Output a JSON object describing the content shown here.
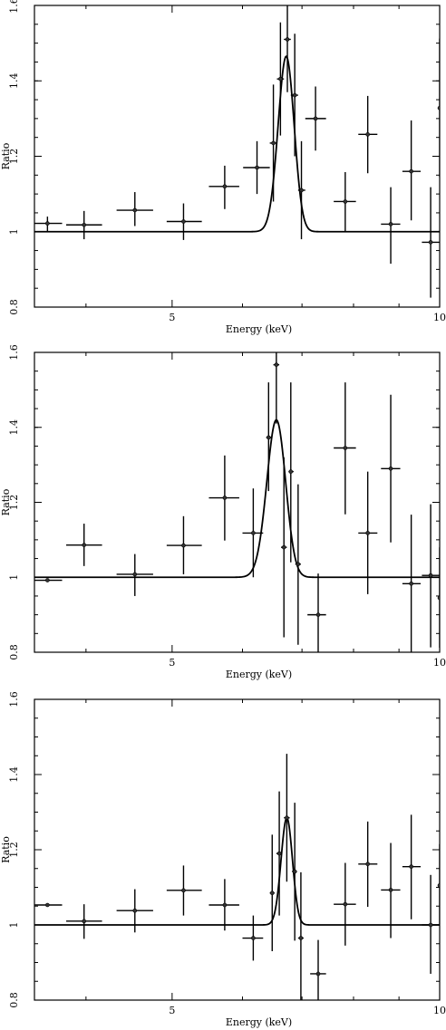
{
  "chart_data": [
    {
      "type": "scatter",
      "xlabel": "Energy (keV)",
      "ylabel": "Ratio",
      "xlim": [
        3.5,
        10
      ],
      "ylim": [
        0.8,
        1.6
      ],
      "x_log": true,
      "xticks_major": [
        5,
        10
      ],
      "xticklabels": [
        "5",
        "10"
      ],
      "yticks": [
        0.8,
        1.0,
        1.2,
        1.4,
        1.6
      ],
      "yticklabels": [
        "0.8",
        "1",
        "1.2",
        "1.4",
        "1.6"
      ],
      "points": [
        {
          "x": 3.62,
          "xerr": [
            3.5,
            3.76
          ],
          "y": 1.022,
          "yerr": [
            1.0,
            1.04
          ]
        },
        {
          "x": 3.98,
          "xerr": [
            3.8,
            4.17
          ],
          "y": 1.018,
          "yerr": [
            0.98,
            1.055
          ]
        },
        {
          "x": 4.54,
          "xerr": [
            4.33,
            4.76
          ],
          "y": 1.057,
          "yerr": [
            1.015,
            1.105
          ]
        },
        {
          "x": 5.15,
          "xerr": [
            4.93,
            5.4
          ],
          "y": 1.027,
          "yerr": [
            0.978,
            1.075
          ]
        },
        {
          "x": 5.73,
          "xerr": [
            5.5,
            5.95
          ],
          "y": 1.12,
          "yerr": [
            1.06,
            1.175
          ]
        },
        {
          "x": 6.23,
          "xerr": [
            6.01,
            6.44
          ],
          "y": 1.17,
          "yerr": [
            1.1,
            1.24
          ]
        },
        {
          "x": 6.5,
          "xerr": [
            6.44,
            6.56
          ],
          "y": 1.235,
          "yerr": [
            1.08,
            1.39
          ]
        },
        {
          "x": 6.62,
          "xerr": [
            6.56,
            6.68
          ],
          "y": 1.405,
          "yerr": [
            1.255,
            1.555
          ]
        },
        {
          "x": 6.74,
          "xerr": [
            6.68,
            6.8
          ],
          "y": 1.51,
          "yerr": [
            1.37,
            1.65
          ]
        },
        {
          "x": 6.87,
          "xerr": [
            6.8,
            6.93
          ],
          "y": 1.362,
          "yerr": [
            1.2,
            1.525
          ]
        },
        {
          "x": 6.99,
          "xerr": [
            6.93,
            7.06
          ],
          "y": 1.11,
          "yerr": [
            0.98,
            1.24
          ]
        },
        {
          "x": 7.25,
          "xerr": [
            7.06,
            7.45
          ],
          "y": 1.3,
          "yerr": [
            1.215,
            1.385
          ]
        },
        {
          "x": 7.83,
          "xerr": [
            7.6,
            8.05
          ],
          "y": 1.08,
          "yerr": [
            1.0,
            1.158
          ]
        },
        {
          "x": 8.3,
          "xerr": [
            8.1,
            8.51
          ],
          "y": 1.258,
          "yerr": [
            1.155,
            1.36
          ]
        },
        {
          "x": 8.81,
          "xerr": [
            8.59,
            9.03
          ],
          "y": 1.02,
          "yerr": [
            0.915,
            1.118
          ]
        },
        {
          "x": 9.29,
          "xerr": [
            9.08,
            9.52
          ],
          "y": 1.16,
          "yerr": [
            1.03,
            1.295
          ]
        },
        {
          "x": 9.77,
          "xerr": [
            9.55,
            10.0
          ],
          "y": 0.972,
          "yerr": [
            0.825,
            1.118
          ]
        },
        {
          "x": 10.4,
          "xerr": [
            10.0,
            10.8
          ],
          "y": 1.328,
          "yerr": [
            1.145,
            1.512
          ]
        }
      ],
      "model": {
        "type": "gaussian",
        "baseline": 1.0,
        "peak_x": 6.72,
        "amplitude": 0.465,
        "sigma": 0.14
      }
    },
    {
      "type": "scatter",
      "xlabel": "Energy (keV)",
      "ylabel": "Ratio",
      "xlim": [
        3.5,
        10
      ],
      "ylim": [
        0.8,
        1.6
      ],
      "x_log": true,
      "xticks_major": [
        5,
        10
      ],
      "xticklabels": [
        "5",
        "10"
      ],
      "yticks": [
        0.8,
        1.0,
        1.2,
        1.4,
        1.6
      ],
      "yticklabels": [
        "0.8",
        "1",
        "1.2",
        "1.4",
        "1.6"
      ],
      "points": [
        {
          "x": 3.62,
          "xerr": [
            3.5,
            3.76
          ],
          "y": 0.992,
          "yerr": [
            0.992,
            0.992
          ]
        },
        {
          "x": 3.98,
          "xerr": [
            3.8,
            4.17
          ],
          "y": 1.086,
          "yerr": [
            1.03,
            1.143
          ]
        },
        {
          "x": 4.54,
          "xerr": [
            4.33,
            4.76
          ],
          "y": 1.008,
          "yerr": [
            0.95,
            1.062
          ]
        },
        {
          "x": 5.15,
          "xerr": [
            4.93,
            5.4
          ],
          "y": 1.085,
          "yerr": [
            1.008,
            1.163
          ]
        },
        {
          "x": 5.73,
          "xerr": [
            5.5,
            5.95
          ],
          "y": 1.212,
          "yerr": [
            1.098,
            1.325
          ]
        },
        {
          "x": 6.17,
          "xerr": [
            6.0,
            6.33
          ],
          "y": 1.118,
          "yerr": [
            1.0,
            1.237
          ]
        },
        {
          "x": 6.42,
          "xerr": [
            6.38,
            6.47
          ],
          "y": 1.373,
          "yerr": [
            1.23,
            1.52
          ]
        },
        {
          "x": 6.55,
          "xerr": [
            6.5,
            6.6
          ],
          "y": 1.567,
          "yerr": [
            1.41,
            1.72
          ]
        },
        {
          "x": 6.68,
          "xerr": [
            6.63,
            6.73
          ],
          "y": 1.08,
          "yerr": [
            0.84,
            1.32
          ]
        },
        {
          "x": 6.8,
          "xerr": [
            6.76,
            6.85
          ],
          "y": 1.282,
          "yerr": [
            1.04,
            1.52
          ]
        },
        {
          "x": 6.93,
          "xerr": [
            6.88,
            6.98
          ],
          "y": 1.035,
          "yerr": [
            0.82,
            1.248
          ]
        },
        {
          "x": 7.3,
          "xerr": [
            7.1,
            7.45
          ],
          "y": 0.9,
          "yerr": [
            0.8,
            1.01
          ]
        },
        {
          "x": 7.83,
          "xerr": [
            7.6,
            8.05
          ],
          "y": 1.345,
          "yerr": [
            1.168,
            1.52
          ]
        },
        {
          "x": 8.3,
          "xerr": [
            8.1,
            8.51
          ],
          "y": 1.118,
          "yerr": [
            0.955,
            1.282
          ]
        },
        {
          "x": 8.81,
          "xerr": [
            8.59,
            9.03
          ],
          "y": 1.29,
          "yerr": [
            1.093,
            1.487
          ]
        },
        {
          "x": 9.29,
          "xerr": [
            9.08,
            9.52
          ],
          "y": 0.983,
          "yerr": [
            0.8,
            1.167
          ]
        },
        {
          "x": 9.77,
          "xerr": [
            9.55,
            10.0
          ],
          "y": 1.005,
          "yerr": [
            0.813,
            1.195
          ]
        },
        {
          "x": 10.4,
          "xerr": [
            10.0,
            10.8
          ],
          "y": 0.945,
          "yerr": [
            0.812,
            1.08
          ]
        }
      ],
      "model": {
        "type": "gaussian",
        "baseline": 1.0,
        "peak_x": 6.55,
        "amplitude": 0.42,
        "sigma": 0.16
      }
    },
    {
      "type": "scatter",
      "xlabel": "Energy (keV)",
      "ylabel": "Ratio",
      "xlim": [
        3.5,
        10
      ],
      "ylim": [
        0.8,
        1.6
      ],
      "x_log": true,
      "xticks_major": [
        5,
        10
      ],
      "xticklabels": [
        "5",
        "10"
      ],
      "yticks": [
        0.8,
        1.0,
        1.2,
        1.4,
        1.6
      ],
      "yticklabels": [
        "0.8",
        "1",
        "1.2",
        "1.4",
        "1.6"
      ],
      "points": [
        {
          "x": 3.62,
          "xerr": [
            3.5,
            3.76
          ],
          "y": 1.053,
          "yerr": [
            1.053,
            1.053
          ]
        },
        {
          "x": 3.98,
          "xerr": [
            3.8,
            4.17
          ],
          "y": 1.01,
          "yerr": [
            0.963,
            1.055
          ]
        },
        {
          "x": 4.54,
          "xerr": [
            4.33,
            4.76
          ],
          "y": 1.038,
          "yerr": [
            0.98,
            1.095
          ]
        },
        {
          "x": 5.15,
          "xerr": [
            4.93,
            5.4
          ],
          "y": 1.092,
          "yerr": [
            1.025,
            1.158
          ]
        },
        {
          "x": 5.73,
          "xerr": [
            5.5,
            5.95
          ],
          "y": 1.053,
          "yerr": [
            0.985,
            1.122
          ]
        },
        {
          "x": 6.17,
          "xerr": [
            6.0,
            6.33
          ],
          "y": 0.965,
          "yerr": [
            0.905,
            1.025
          ]
        },
        {
          "x": 6.48,
          "xerr": [
            6.44,
            6.52
          ],
          "y": 1.085,
          "yerr": [
            0.93,
            1.24
          ]
        },
        {
          "x": 6.6,
          "xerr": [
            6.55,
            6.64
          ],
          "y": 1.19,
          "yerr": [
            1.025,
            1.355
          ]
        },
        {
          "x": 6.73,
          "xerr": [
            6.68,
            6.78
          ],
          "y": 1.285,
          "yerr": [
            1.115,
            1.455
          ]
        },
        {
          "x": 6.87,
          "xerr": [
            6.82,
            6.91
          ],
          "y": 1.142,
          "yerr": [
            0.958,
            1.325
          ]
        },
        {
          "x": 6.98,
          "xerr": [
            6.93,
            7.03
          ],
          "y": 0.965,
          "yerr": [
            0.8,
            1.14
          ]
        },
        {
          "x": 7.3,
          "xerr": [
            7.15,
            7.45
          ],
          "y": 0.87,
          "yerr": [
            0.8,
            0.96
          ]
        },
        {
          "x": 7.83,
          "xerr": [
            7.6,
            8.05
          ],
          "y": 1.055,
          "yerr": [
            0.945,
            1.165
          ]
        },
        {
          "x": 8.3,
          "xerr": [
            8.1,
            8.51
          ],
          "y": 1.162,
          "yerr": [
            1.048,
            1.275
          ]
        },
        {
          "x": 8.81,
          "xerr": [
            8.59,
            9.03
          ],
          "y": 1.093,
          "yerr": [
            0.965,
            1.218
          ]
        },
        {
          "x": 9.29,
          "xerr": [
            9.08,
            9.52
          ],
          "y": 1.155,
          "yerr": [
            1.015,
            1.293
          ]
        },
        {
          "x": 9.77,
          "xerr": [
            9.55,
            10.0
          ],
          "y": 1.0,
          "yerr": [
            0.87,
            1.133
          ]
        },
        {
          "x": 10.4,
          "xerr": [
            10.0,
            10.8
          ],
          "y": 1.105,
          "yerr": [
            0.998,
            1.215
          ]
        }
      ],
      "model": {
        "type": "gaussian",
        "baseline": 1.0,
        "peak_x": 6.73,
        "amplitude": 0.285,
        "sigma": 0.1
      }
    }
  ]
}
